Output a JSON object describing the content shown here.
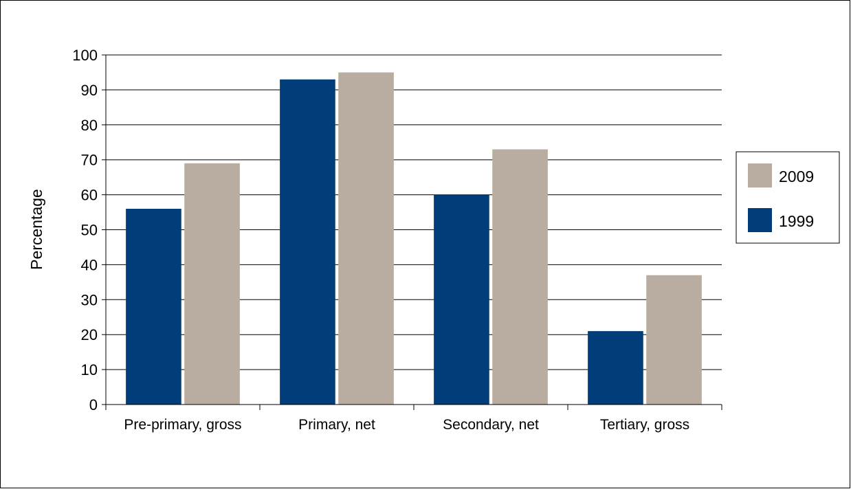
{
  "chart_data": {
    "type": "bar",
    "title": "",
    "xlabel": "",
    "ylabel": "Percentage",
    "categories": [
      "Pre-primary, gross",
      "Primary, net",
      "Secondary, net",
      "Tertiary, gross"
    ],
    "series": [
      {
        "name": "1999",
        "color": "#003D79",
        "values": [
          56,
          93,
          60,
          21
        ]
      },
      {
        "name": "2009",
        "color": "#B8ADA0",
        "values": [
          69,
          95,
          73,
          37
        ]
      }
    ],
    "ylim": [
      0,
      100
    ],
    "yticks": [
      0,
      10,
      20,
      30,
      40,
      50,
      60,
      70,
      80,
      90,
      100
    ],
    "grid": true,
    "legend": {
      "position": "right",
      "order": [
        "2009",
        "1999"
      ]
    }
  }
}
